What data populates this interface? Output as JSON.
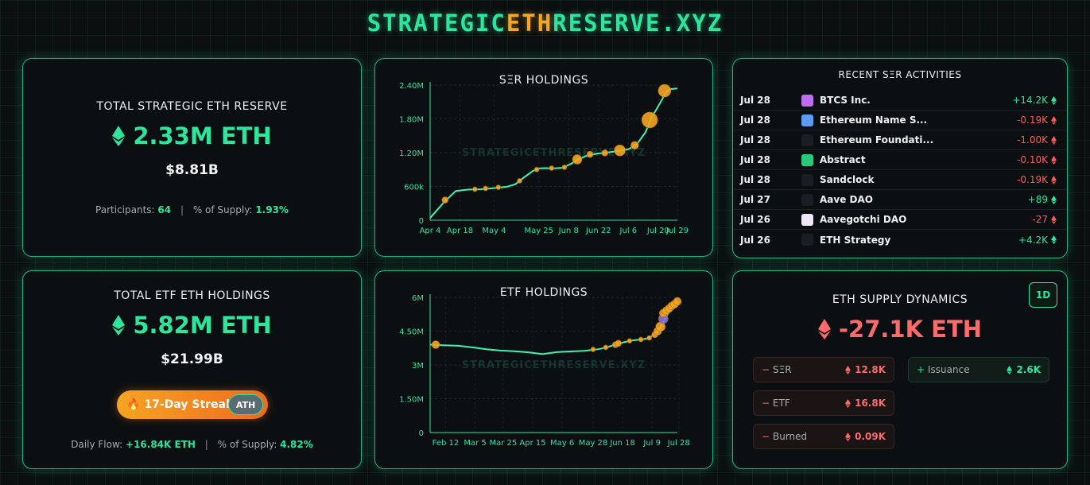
{
  "site_title": {
    "part1": "STRATEGIC",
    "part2": "ETH",
    "part3": "RESERVE.XYZ"
  },
  "reserve": {
    "title": "TOTAL STRATEGIC ETH RESERVE",
    "amount": "2.33M ETH",
    "usd": "$8.81B",
    "participants_label": "Participants:",
    "participants": "64",
    "supply_label": "% of Supply:",
    "supply": "1.93%"
  },
  "etf": {
    "title": "TOTAL ETF ETH HOLDINGS",
    "amount": "5.82M ETH",
    "usd": "$21.99B",
    "streak_icon": "fire-icon",
    "streak_label": "17-Day Streak",
    "ath_label": "ATH",
    "flow_label": "Daily Flow:",
    "flow": "+16.84K ETH",
    "supply_label": "% of Supply:",
    "supply": "4.82%"
  },
  "activities": {
    "title": "RECENT SΞR ACTIVITIES",
    "rows": [
      {
        "date": "Jul 28",
        "name": "BTCS Inc.",
        "amount": "+14.2K",
        "dir": "pos",
        "logo": "btcs-logo",
        "logo_color": "#c06cf0"
      },
      {
        "date": "Jul 28",
        "name": "Ethereum Name S...",
        "amount": "-0.19K",
        "dir": "neg",
        "logo": "ens-logo",
        "logo_color": "#5a9cf8"
      },
      {
        "date": "Jul 28",
        "name": "Ethereum Foundati...",
        "amount": "-1.00K",
        "dir": "neg",
        "logo": "ef-logo",
        "logo_color": "#1b1d24"
      },
      {
        "date": "Jul 28",
        "name": "Abstract",
        "amount": "-0.10K",
        "dir": "neg",
        "logo": "abstract-logo",
        "logo_color": "#2bc77a"
      },
      {
        "date": "Jul 28",
        "name": "Sandclock",
        "amount": "-0.19K",
        "dir": "neg",
        "logo": "sandclock-logo",
        "logo_color": "#1b1d24"
      },
      {
        "date": "Jul 27",
        "name": "Aave DAO",
        "amount": "+89",
        "dir": "pos",
        "logo": "aave-logo",
        "logo_color": "#1b1d24"
      },
      {
        "date": "Jul 26",
        "name": "Aavegotchi DAO",
        "amount": "-27",
        "dir": "neg",
        "logo": "aavegotchi-logo",
        "logo_color": "#f0e6f8"
      },
      {
        "date": "Jul 26",
        "name": "ETH Strategy",
        "amount": "+4.2K",
        "dir": "pos",
        "logo": "ethstrategy-logo",
        "logo_color": "#1b1d24"
      }
    ]
  },
  "supply": {
    "title": "ETH SUPPLY DYNAMICS",
    "timeframe": "1D",
    "net": "-27.1K ETH",
    "items": [
      {
        "sign": "−",
        "label": "SΞR",
        "value": "12.8K",
        "dir": "neg"
      },
      {
        "sign": "−",
        "label": "ETF",
        "value": "16.8K",
        "dir": "neg"
      },
      {
        "sign": "−",
        "label": "Burned",
        "value": "0.09K",
        "dir": "neg"
      },
      {
        "sign": "+",
        "label": "Issuance",
        "value": "2.6K",
        "dir": "pos"
      }
    ]
  },
  "colors": {
    "accent": "#2ee59d",
    "orange": "#f5a524",
    "negative": "#ff5a5a",
    "purple": "#8a6cf0"
  },
  "chart_data": [
    {
      "type": "line",
      "title": "SΞR HOLDINGS",
      "watermark": "STRATEGICETHRESERVE.XYZ",
      "x_ticks": [
        "Apr 4",
        "Apr 18",
        "May 4",
        "May 25",
        "Jun 8",
        "Jun 22",
        "Jul 6",
        "Jul 20",
        "Jul 29"
      ],
      "y_ticks": [
        "0",
        "600k",
        "1.20M",
        "1.80M",
        "2.40M"
      ],
      "ylim": [
        0,
        2400000
      ],
      "xlim": [
        0,
        116
      ],
      "x_tick_days": [
        0,
        14,
        30,
        51,
        65,
        79,
        93,
        107,
        116
      ],
      "line": [
        [
          0,
          40000
        ],
        [
          6,
          300000
        ],
        [
          12,
          520000
        ],
        [
          18,
          545000
        ],
        [
          24,
          550000
        ],
        [
          30,
          570000
        ],
        [
          36,
          595000
        ],
        [
          40,
          640000
        ],
        [
          44,
          760000
        ],
        [
          48,
          870000
        ],
        [
          51,
          920000
        ],
        [
          54,
          925000
        ],
        [
          58,
          920000
        ],
        [
          62,
          930000
        ],
        [
          66,
          1000000
        ],
        [
          70,
          1090000
        ],
        [
          73,
          1140000
        ],
        [
          78,
          1180000
        ],
        [
          83,
          1200000
        ],
        [
          88,
          1230000
        ],
        [
          93,
          1260000
        ],
        [
          97,
          1350000
        ],
        [
          101,
          1560000
        ],
        [
          104,
          1830000
        ],
        [
          108,
          2090000
        ],
        [
          111,
          2290000
        ],
        [
          113,
          2330000
        ],
        [
          116,
          2340000
        ]
      ],
      "events": [
        {
          "x": 7,
          "y": 360000,
          "size": 4
        },
        {
          "x": 21,
          "y": 550000,
          "size": 3
        },
        {
          "x": 26,
          "y": 565000,
          "size": 3
        },
        {
          "x": 32,
          "y": 585000,
          "size": 3
        },
        {
          "x": 42,
          "y": 700000,
          "size": 3
        },
        {
          "x": 50,
          "y": 900000,
          "size": 3
        },
        {
          "x": 57,
          "y": 925000,
          "size": 3
        },
        {
          "x": 63,
          "y": 940000,
          "size": 3
        },
        {
          "x": 69,
          "y": 1080000,
          "size": 6
        },
        {
          "x": 75,
          "y": 1170000,
          "size": 4
        },
        {
          "x": 82,
          "y": 1195000,
          "size": 4
        },
        {
          "x": 89,
          "y": 1240000,
          "size": 7
        },
        {
          "x": 96,
          "y": 1330000,
          "size": 5
        },
        {
          "x": 103,
          "y": 1780000,
          "size": 10
        },
        {
          "x": 110,
          "y": 2300000,
          "size": 8
        }
      ]
    },
    {
      "type": "line",
      "title": "ETF HOLDINGS",
      "watermark": "STRATEGICETHRESERVE.XYZ",
      "x_ticks": [
        "Feb 12",
        "Mar 5",
        "Mar 25",
        "Apr 15",
        "May 6",
        "May 28",
        "Jun 18",
        "Jul 9",
        "Jul 28"
      ],
      "y_ticks": [
        "0",
        "1.50M",
        "3M",
        "4.50M",
        "6M"
      ],
      "ylim": [
        0,
        6000000
      ],
      "xlim": [
        0,
        176
      ],
      "x_tick_days": [
        11,
        32,
        52,
        73,
        94,
        116,
        137,
        158,
        177
      ],
      "line": [
        [
          0,
          3900000
        ],
        [
          10,
          3870000
        ],
        [
          20,
          3850000
        ],
        [
          30,
          3780000
        ],
        [
          40,
          3700000
        ],
        [
          50,
          3640000
        ],
        [
          60,
          3610000
        ],
        [
          70,
          3560000
        ],
        [
          80,
          3480000
        ],
        [
          90,
          3570000
        ],
        [
          100,
          3600000
        ],
        [
          110,
          3630000
        ],
        [
          120,
          3700000
        ],
        [
          126,
          3790000
        ],
        [
          132,
          3900000
        ],
        [
          138,
          4010000
        ],
        [
          144,
          4090000
        ],
        [
          150,
          4130000
        ],
        [
          154,
          4170000
        ],
        [
          158,
          4280000
        ],
        [
          162,
          4500000
        ],
        [
          166,
          4900000
        ],
        [
          170,
          5350000
        ],
        [
          173,
          5650000
        ],
        [
          176,
          5820000
        ]
      ],
      "events": [
        {
          "x": 4,
          "y": 3900000,
          "size": 5,
          "color": "#f5a524"
        },
        {
          "x": 116,
          "y": 3690000,
          "size": 3,
          "color": "#f5a524"
        },
        {
          "x": 125,
          "y": 3780000,
          "size": 3,
          "color": "#f5a524"
        },
        {
          "x": 132,
          "y": 3900000,
          "size": 4,
          "color": "#f5a524"
        },
        {
          "x": 134,
          "y": 3960000,
          "size": 4,
          "color": "#f5a524"
        },
        {
          "x": 142,
          "y": 4070000,
          "size": 3,
          "color": "#f5a524"
        },
        {
          "x": 150,
          "y": 4130000,
          "size": 3,
          "color": "#f5a524"
        },
        {
          "x": 156,
          "y": 4200000,
          "size": 3,
          "color": "#f5a524"
        },
        {
          "x": 160,
          "y": 4350000,
          "size": 4,
          "color": "#f5a524"
        },
        {
          "x": 162,
          "y": 4500000,
          "size": 5,
          "color": "#f5a524"
        },
        {
          "x": 164,
          "y": 4700000,
          "size": 6,
          "color": "#f5a524"
        },
        {
          "x": 166,
          "y": 5050000,
          "size": 6,
          "color": "#8a6cf0"
        },
        {
          "x": 166,
          "y": 5300000,
          "size": 5,
          "color": "#f5a524"
        },
        {
          "x": 168,
          "y": 5400000,
          "size": 5,
          "color": "#f5a524"
        },
        {
          "x": 170,
          "y": 5500000,
          "size": 5,
          "color": "#f5a524"
        },
        {
          "x": 172,
          "y": 5620000,
          "size": 5,
          "color": "#f5a524"
        },
        {
          "x": 174,
          "y": 5700000,
          "size": 5,
          "color": "#f5a524"
        },
        {
          "x": 176,
          "y": 5820000,
          "size": 5,
          "color": "#f5a524"
        }
      ]
    }
  ]
}
